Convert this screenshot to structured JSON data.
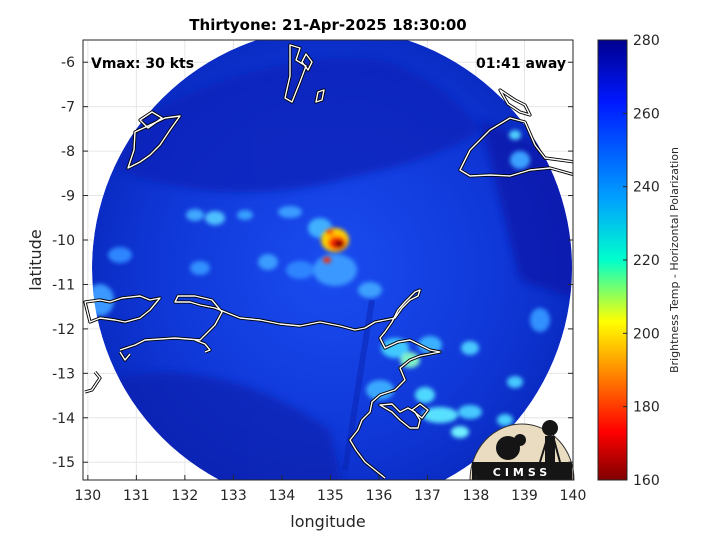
{
  "title": "Thirtyone: 21-Apr-2025 18:30:00",
  "vmax_label": "Vmax: 30 kts",
  "away_label": "01:41 away",
  "x_axis": {
    "label": "longitude",
    "range": [
      129.9,
      140.0
    ],
    "ticks": [
      "130",
      "131",
      "132",
      "133",
      "134",
      "135",
      "136",
      "137",
      "138",
      "139",
      "140"
    ],
    "tick_values": [
      130,
      131,
      132,
      133,
      134,
      135,
      136,
      137,
      138,
      139,
      140
    ]
  },
  "y_axis": {
    "label": "latitude",
    "range": [
      -15.4,
      -5.5
    ],
    "ticks": [
      "-6",
      "-7",
      "-8",
      "-9",
      "-10",
      "-11",
      "-12",
      "-13",
      "-14",
      "-15"
    ],
    "tick_values": [
      -6,
      -7,
      -8,
      -9,
      -10,
      -11,
      -12,
      -13,
      -14,
      -15
    ]
  },
  "colorbar": {
    "label": "Brightness Temp - Horizontal Polarization",
    "range": [
      160,
      280
    ],
    "ticks": [
      "280",
      "260",
      "240",
      "220",
      "200",
      "180",
      "160"
    ],
    "tick_values": [
      280,
      260,
      240,
      220,
      200,
      180,
      160
    ],
    "colormap": "jet"
  },
  "logo_text": "CIMSS",
  "swath": {
    "center": [
      134.95,
      -10.75
    ],
    "radius_deg": 4.85
  },
  "storm_center": [
    135.1,
    -10.05
  ]
}
